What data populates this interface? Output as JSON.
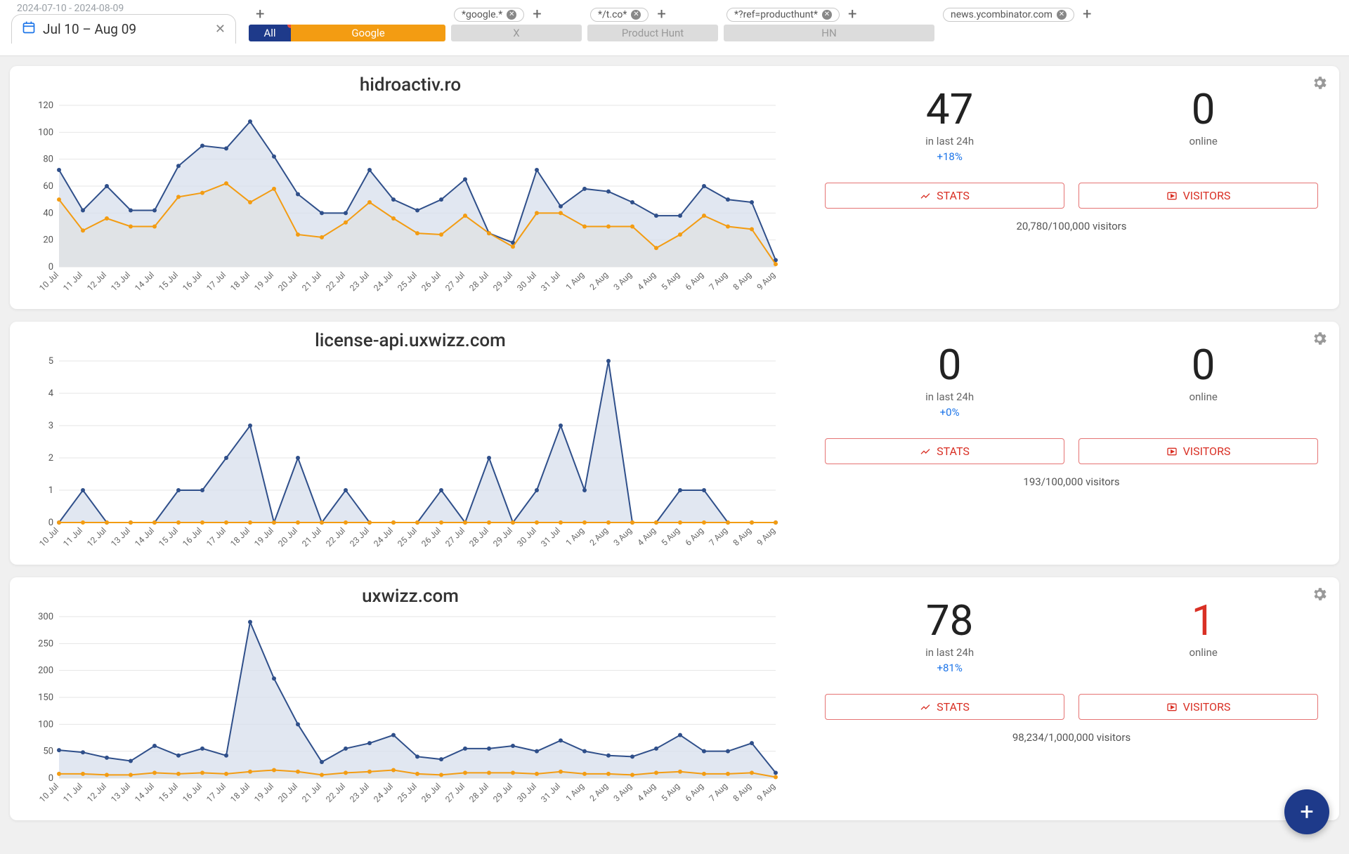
{
  "dateRangeFull": "2024-07-10 - 2024-08-09",
  "dateRangeShort": "Jul 10 – Aug 09",
  "tabs": {
    "all": "All",
    "google": {
      "chip": "*google.*",
      "label": "Google"
    },
    "x": {
      "chip": "*/t.co*",
      "label": "X"
    },
    "ph": {
      "chip": "*?ref=producthunt*",
      "label": "Product Hunt"
    },
    "hn": {
      "chip": "news.ycombinator.com",
      "label": "HN"
    }
  },
  "labels": {
    "last24": "in last 24h",
    "online": "online",
    "stats": "STATS",
    "visitors": "VISITORS"
  },
  "xlabels": [
    "10 Jul",
    "11 Jul",
    "12 Jul",
    "13 Jul",
    "14 Jul",
    "15 Jul",
    "16 Jul",
    "17 Jul",
    "18 Jul",
    "19 Jul",
    "20 Jul",
    "21 Jul",
    "22 Jul",
    "23 Jul",
    "24 Jul",
    "25 Jul",
    "26 Jul",
    "27 Jul",
    "28 Jul",
    "29 Jul",
    "30 Jul",
    "31 Jul",
    "1 Aug",
    "2 Aug",
    "3 Aug",
    "4 Aug",
    "5 Aug",
    "6 Aug",
    "7 Aug",
    "8 Aug",
    "9 Aug"
  ],
  "colors": {
    "line1": "#2f4f8a",
    "fill1": "#d9e1ee",
    "line2": "#f39c12",
    "fill2": "#fbe9c9",
    "grid": "#e6e6e6",
    "axis": "#555"
  },
  "sites": [
    {
      "title": "hidroactiv.ro",
      "big1": "47",
      "pct": "+18%",
      "big2": "0",
      "big2red": false,
      "total": "20,780/100,000 visitors",
      "ymax": 120,
      "ystep": 20,
      "seriesA": [
        72,
        42,
        60,
        42,
        42,
        75,
        90,
        88,
        108,
        82,
        54,
        40,
        40,
        72,
        50,
        42,
        50,
        65,
        25,
        18,
        72,
        45,
        58,
        56,
        48,
        38,
        38,
        60,
        50,
        48,
        5
      ],
      "seriesB": [
        50,
        27,
        36,
        30,
        30,
        52,
        55,
        62,
        48,
        58,
        24,
        22,
        33,
        48,
        36,
        25,
        24,
        38,
        25,
        15,
        40,
        40,
        30,
        30,
        30,
        14,
        24,
        38,
        30,
        28,
        2
      ]
    },
    {
      "title": "license-api.uxwizz.com",
      "big1": "0",
      "pct": "+0%",
      "big2": "0",
      "big2red": false,
      "total": "193/100,000 visitors",
      "ymax": 5,
      "ystep": 1,
      "seriesA": [
        0,
        1,
        0,
        0,
        0,
        1,
        1,
        2,
        3,
        0,
        2,
        0,
        1,
        0,
        0,
        0,
        1,
        0,
        2,
        0,
        1,
        3,
        1,
        5,
        0,
        0,
        1,
        1,
        0,
        0,
        0
      ],
      "seriesB": [
        0,
        0,
        0,
        0,
        0,
        0,
        0,
        0,
        0,
        0,
        0,
        0,
        0,
        0,
        0,
        0,
        0,
        0,
        0,
        0,
        0,
        0,
        0,
        0,
        0,
        0,
        0,
        0,
        0,
        0,
        0
      ]
    },
    {
      "title": "uxwizz.com",
      "big1": "78",
      "pct": "+81%",
      "big2": "1",
      "big2red": true,
      "total": "98,234/1,000,000 visitors",
      "ymax": 300,
      "ystep": 50,
      "seriesA": [
        52,
        48,
        38,
        32,
        60,
        42,
        55,
        42,
        290,
        185,
        100,
        30,
        55,
        65,
        80,
        40,
        35,
        55,
        55,
        60,
        50,
        70,
        50,
        42,
        40,
        55,
        80,
        50,
        50,
        65,
        10
      ],
      "seriesB": [
        8,
        8,
        6,
        6,
        10,
        8,
        10,
        8,
        12,
        15,
        12,
        6,
        10,
        12,
        15,
        8,
        6,
        10,
        10,
        10,
        8,
        12,
        8,
        8,
        6,
        10,
        12,
        8,
        8,
        10,
        2
      ]
    }
  ]
}
